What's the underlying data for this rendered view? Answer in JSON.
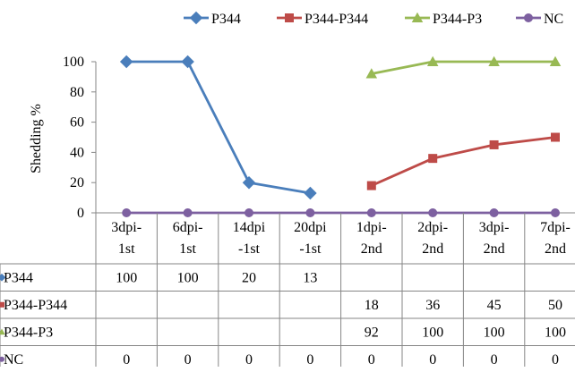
{
  "chart_data": {
    "type": "line",
    "ylabel": "Shedding %",
    "ylim": [
      0,
      100
    ],
    "yticks": [
      0,
      20,
      40,
      60,
      80,
      100
    ],
    "categories": [
      [
        "3dpi-",
        "1st"
      ],
      [
        "6dpi-",
        "1st"
      ],
      [
        "14dpi",
        "-1st"
      ],
      [
        "20dpi",
        "-1st"
      ],
      [
        "1dpi-",
        "2nd"
      ],
      [
        "2dpi-",
        "2nd"
      ],
      [
        "3dpi-",
        "2nd"
      ],
      [
        "7dpi-",
        "2nd"
      ]
    ],
    "legend_position": "top",
    "data_table": true,
    "series": [
      {
        "name": "P344",
        "color": "#4a7ebb",
        "marker": "diamond",
        "values": [
          100,
          100,
          20,
          13,
          null,
          null,
          null,
          null
        ]
      },
      {
        "name": "P344-P344",
        "color": "#be4b48",
        "marker": "square",
        "values": [
          null,
          null,
          null,
          null,
          18,
          36,
          45,
          50
        ]
      },
      {
        "name": "P344-P3",
        "color": "#98b954",
        "marker": "triangle",
        "values": [
          null,
          null,
          null,
          null,
          92,
          100,
          100,
          100
        ]
      },
      {
        "name": "NC",
        "color": "#7d60a0",
        "marker": "circle",
        "values": [
          0,
          0,
          0,
          0,
          0,
          0,
          0,
          0
        ]
      }
    ]
  }
}
